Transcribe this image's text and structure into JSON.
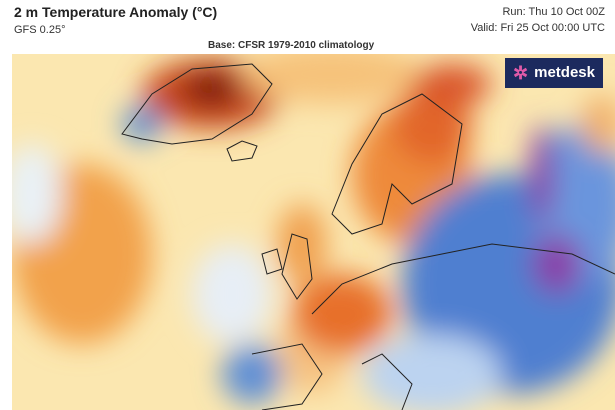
{
  "header": {
    "title": "2 m Temperature Anomaly (°C)",
    "model": "GFS 0.25°",
    "base": "Base: CFSR 1979-2010 climatology",
    "run": "Run: Thu 10 Oct 00Z",
    "valid": "Valid: Fri 25 Oct 00:00 UTC"
  },
  "logo": "metdesk"
}
